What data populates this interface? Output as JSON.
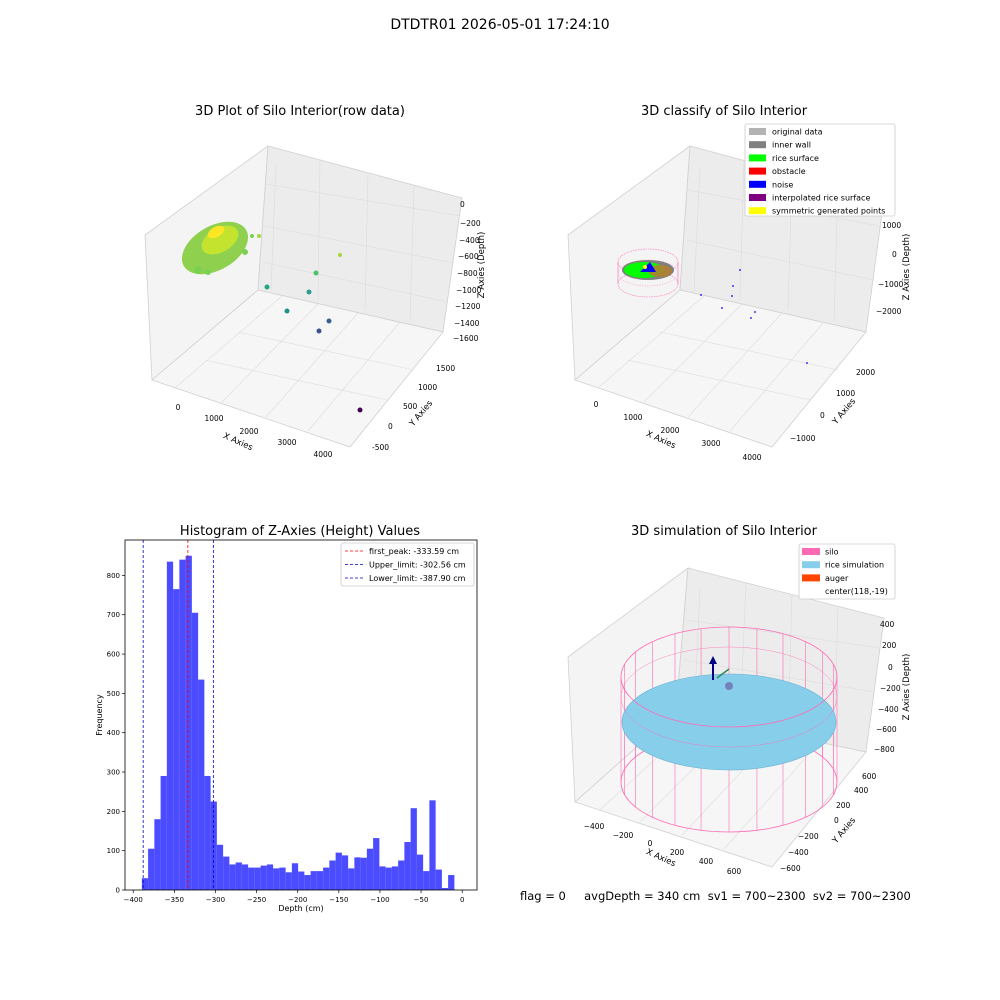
{
  "figure_title": "DTDTR01 2026-05-01 17:24:10",
  "status_line": "flag = 0     avgDepth = 340 cm  sv1 = 700~2300  sv2 = 700~2300",
  "panels": {
    "raw3d": {
      "title": "3D Plot of Silo Interior(row data)",
      "xlabel": "X Axies",
      "ylabel": "Y Axies",
      "zlabel": "Z Axies (Depth)",
      "xticks": [
        "0",
        "1000",
        "2000",
        "3000",
        "4000"
      ],
      "yticks": [
        "-500",
        "0",
        "500",
        "1000",
        "1500"
      ],
      "zticks": [
        "0",
        "−200",
        "−400",
        "−600",
        "−800",
        "−1000",
        "−1200",
        "−1400",
        "−1600"
      ]
    },
    "classify3d": {
      "title": "3D classify of Silo Interior",
      "xlabel": "X Axies",
      "ylabel": "Y Axies",
      "zlabel": "Z Axies (Depth)",
      "xticks": [
        "0",
        "1000",
        "2000",
        "3000",
        "4000"
      ],
      "yticks": [
        "−1000",
        "0",
        "1000",
        "2000"
      ],
      "zticks": [
        "1000",
        "0",
        "−1000",
        "−2000"
      ],
      "legend": [
        {
          "label": "original data",
          "color": "#b3b3b3"
        },
        {
          "label": "inner wall",
          "color": "#808080"
        },
        {
          "label": "rice surface",
          "color": "#00ff00"
        },
        {
          "label": "obstacle",
          "color": "#ff0000"
        },
        {
          "label": "noise",
          "color": "#0000ff"
        },
        {
          "label": "interpolated rice surface",
          "color": "#800080"
        },
        {
          "label": "symmetric generated points",
          "color": "#ffff00"
        }
      ]
    },
    "sim3d": {
      "title": "3D simulation of Silo Interior",
      "xlabel": "X Axies",
      "ylabel": "Y Axies",
      "zlabel": "Z Axies (Depth)",
      "xticks": [
        "−400",
        "−200",
        "0",
        "200",
        "400",
        "600"
      ],
      "yticks": [
        "−600",
        "−400",
        "−200",
        "0",
        "200",
        "400",
        "600"
      ],
      "zticks": [
        "400",
        "200",
        "0",
        "−200",
        "−400",
        "−600",
        "−800"
      ],
      "legend": [
        {
          "label": "silo",
          "color": "#ff69b4"
        },
        {
          "label": "rice simulation",
          "color": "#87ceeb"
        },
        {
          "label": "auger",
          "color": "#ff4500"
        },
        {
          "label": "center(118,-19)",
          "color": "none"
        }
      ]
    }
  },
  "chart_data": [
    {
      "type": "bar",
      "title": "Histogram of Z-Axies (Height) Values",
      "xlabel": "Depth (cm)",
      "ylabel": "Frequency",
      "xlim": [
        -410,
        18
      ],
      "ylim": [
        0,
        890
      ],
      "xticks": [
        -400,
        -350,
        -300,
        -250,
        -200,
        -150,
        -100,
        -50,
        0
      ],
      "xtick_labels": [
        "−400",
        "−350",
        "−300",
        "−250",
        "−200",
        "−150",
        "−100",
        "−50",
        "0"
      ],
      "yticks": [
        0,
        100,
        200,
        300,
        400,
        500,
        600,
        700,
        800
      ],
      "bar_color": "#4b4bff",
      "bin_start": -389.5,
      "bin_width": 7.6,
      "values": [
        30,
        105,
        180,
        290,
        835,
        765,
        840,
        850,
        705,
        535,
        290,
        225,
        115,
        85,
        65,
        70,
        65,
        57,
        57,
        62,
        65,
        55,
        57,
        45,
        68,
        47,
        38,
        48,
        48,
        57,
        75,
        95,
        88,
        55,
        83,
        82,
        105,
        132,
        60,
        57,
        60,
        75,
        122,
        208,
        90,
        48,
        228,
        52,
        5,
        38
      ],
      "lines": [
        {
          "label": "first_peak: -333.59 cm",
          "x": -333.59,
          "color": "#ff0000"
        },
        {
          "label": "Upper_limit: -302.56 cm",
          "x": -302.56,
          "color": "#0000cc"
        },
        {
          "label": "Lower_limit: -387.90 cm",
          "x": -387.9,
          "color": "#0000cc"
        }
      ],
      "legend_position": "top-right"
    }
  ]
}
